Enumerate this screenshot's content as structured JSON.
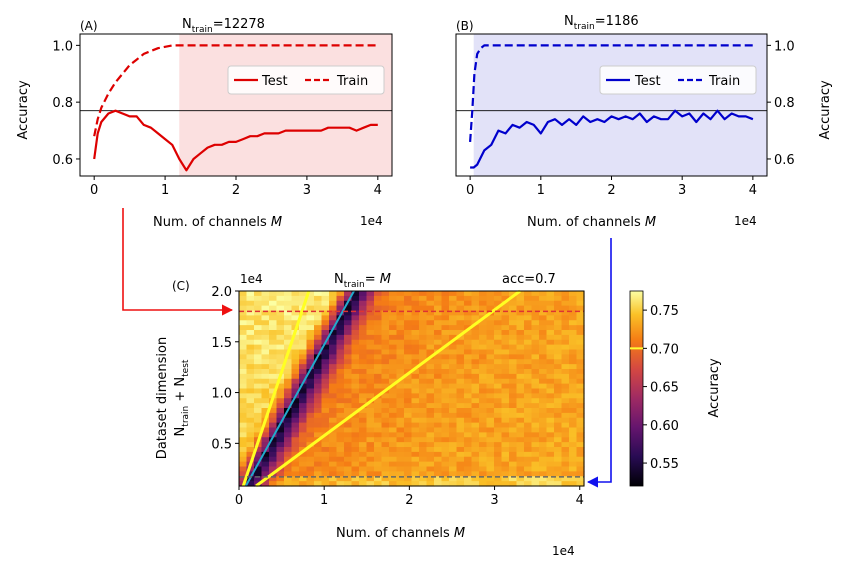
{
  "chart_data": [
    {
      "panel_label": "(A)",
      "type": "line",
      "title_main": "N",
      "title_sub": "train",
      "title_value": "=12278",
      "xlabel": "Num. of channels ",
      "xlabel_var": "M",
      "ylabel": "Accuracy",
      "x_multiplier": "1e4",
      "xlim": [
        -0.2,
        4.2
      ],
      "ylim": [
        0.54,
        1.04
      ],
      "xticks": [
        "0",
        "1",
        "2",
        "3",
        "4"
      ],
      "yticks": [
        "0.6",
        "0.8",
        "1.0"
      ],
      "reference_line": 0.77,
      "shaded_from_x": 1.2,
      "color": "#dd0000",
      "shade_color": "#fbe0e0",
      "legend": {
        "placement": "center-right",
        "entries": [
          "Test",
          "Train"
        ]
      },
      "series": [
        {
          "name": "Test",
          "style": "solid",
          "x": [
            0,
            0.05,
            0.1,
            0.2,
            0.3,
            0.4,
            0.5,
            0.6,
            0.7,
            0.8,
            0.9,
            1.0,
            1.1,
            1.2,
            1.3,
            1.4,
            1.5,
            1.6,
            1.7,
            1.8,
            1.9,
            2.0,
            2.1,
            2.2,
            2.3,
            2.4,
            2.5,
            2.6,
            2.7,
            2.8,
            2.9,
            3.0,
            3.1,
            3.2,
            3.3,
            3.4,
            3.5,
            3.6,
            3.7,
            3.8,
            3.9,
            4.0
          ],
          "y": [
            0.6,
            0.69,
            0.73,
            0.76,
            0.77,
            0.76,
            0.75,
            0.75,
            0.72,
            0.71,
            0.69,
            0.67,
            0.65,
            0.6,
            0.56,
            0.6,
            0.62,
            0.64,
            0.65,
            0.65,
            0.66,
            0.66,
            0.67,
            0.68,
            0.68,
            0.69,
            0.69,
            0.69,
            0.7,
            0.7,
            0.7,
            0.7,
            0.7,
            0.7,
            0.71,
            0.71,
            0.71,
            0.71,
            0.7,
            0.71,
            0.72,
            0.72
          ]
        },
        {
          "name": "Train",
          "style": "dashed",
          "x": [
            0,
            0.05,
            0.1,
            0.2,
            0.3,
            0.4,
            0.5,
            0.6,
            0.7,
            0.8,
            0.9,
            1.0,
            1.1,
            1.2,
            1.5,
            2.0,
            3.0,
            4.0
          ],
          "y": [
            0.68,
            0.74,
            0.78,
            0.83,
            0.87,
            0.9,
            0.93,
            0.95,
            0.97,
            0.98,
            0.99,
            0.995,
            1.0,
            1.0,
            1.0,
            1.0,
            1.0,
            1.0
          ]
        }
      ]
    },
    {
      "panel_label": "(B)",
      "type": "line",
      "title_main": "N",
      "title_sub": "train",
      "title_value": "=1186",
      "xlabel": "Num. of channels ",
      "xlabel_var": "M",
      "ylabel": "Accuracy",
      "x_multiplier": "1e4",
      "xlim": [
        -0.2,
        4.2
      ],
      "ylim": [
        0.54,
        1.04
      ],
      "xticks": [
        "0",
        "1",
        "2",
        "3",
        "4"
      ],
      "yticks": [
        "0.6",
        "0.8",
        "1.0"
      ],
      "reference_line": 0.77,
      "shaded_from_x": 0.05,
      "color": "#0000cc",
      "shade_color": "#e2e2f8",
      "legend": {
        "placement": "center-right",
        "entries": [
          "Test",
          "Train"
        ]
      },
      "series": [
        {
          "name": "Test",
          "style": "solid",
          "x": [
            0,
            0.05,
            0.1,
            0.2,
            0.3,
            0.4,
            0.5,
            0.6,
            0.7,
            0.8,
            0.9,
            1.0,
            1.1,
            1.2,
            1.3,
            1.4,
            1.5,
            1.6,
            1.7,
            1.8,
            1.9,
            2.0,
            2.1,
            2.2,
            2.3,
            2.4,
            2.5,
            2.6,
            2.7,
            2.8,
            2.9,
            3.0,
            3.1,
            3.2,
            3.3,
            3.4,
            3.5,
            3.6,
            3.7,
            3.8,
            3.9,
            4.0
          ],
          "y": [
            0.57,
            0.57,
            0.58,
            0.63,
            0.65,
            0.7,
            0.69,
            0.72,
            0.71,
            0.73,
            0.72,
            0.69,
            0.73,
            0.74,
            0.72,
            0.74,
            0.72,
            0.75,
            0.73,
            0.74,
            0.73,
            0.75,
            0.74,
            0.75,
            0.74,
            0.76,
            0.73,
            0.75,
            0.74,
            0.74,
            0.77,
            0.75,
            0.76,
            0.73,
            0.76,
            0.74,
            0.77,
            0.74,
            0.76,
            0.75,
            0.75,
            0.74
          ]
        },
        {
          "name": "Train",
          "style": "dashed",
          "x": [
            0,
            0.03,
            0.06,
            0.1,
            0.15,
            0.2,
            0.3,
            0.5,
            1.0,
            2.0,
            3.0,
            4.0
          ],
          "y": [
            0.66,
            0.77,
            0.9,
            0.97,
            0.99,
            1.0,
            1.0,
            1.0,
            1.0,
            1.0,
            1.0,
            1.0
          ]
        }
      ]
    },
    {
      "panel_label": "(C)",
      "type": "heatmap",
      "title_main": "N",
      "title_sub": "train",
      "title_value": "= ",
      "title_var": "M",
      "right_title": "acc=0.7",
      "xlabel": "Num. of channels ",
      "xlabel_var": "M",
      "ylabel_line1": "Dataset dimension",
      "ylabel_line2_a": "N",
      "ylabel_line2_a_sub": "train",
      "ylabel_line2_plus": " + N",
      "ylabel_line2_b_sub": "test",
      "x_multiplier": "1e4",
      "y_multiplier": "1e4",
      "xlim": [
        0,
        4.05
      ],
      "ylim": [
        0.08,
        2.0
      ],
      "xticks": [
        "0",
        "1",
        "2",
        "3",
        "4"
      ],
      "yticks": [
        "0.5",
        "1.0",
        "1.5",
        "2.0"
      ],
      "colorbar": {
        "label": "Accuracy",
        "range": [
          0.52,
          0.775
        ],
        "ticks": [
          "0.55",
          "0.60",
          "0.65",
          "0.70",
          "0.75"
        ],
        "marker": 0.7
      },
      "dashed_levels": [
        {
          "y": 1.8,
          "color": "#dd3333"
        },
        {
          "y": 0.17,
          "color": "#666666"
        }
      ],
      "contour_lines_acc_0_7": [
        {
          "x": [
            0.05,
            0.82
          ],
          "y": [
            0.08,
            2.0
          ]
        },
        {
          "x": [
            0.2,
            3.3
          ],
          "y": [
            0.08,
            2.0
          ]
        }
      ],
      "diagonal_line": {
        "x": [
          0.08,
          1.35
        ],
        "y": [
          0.08,
          2.0
        ]
      }
    }
  ]
}
